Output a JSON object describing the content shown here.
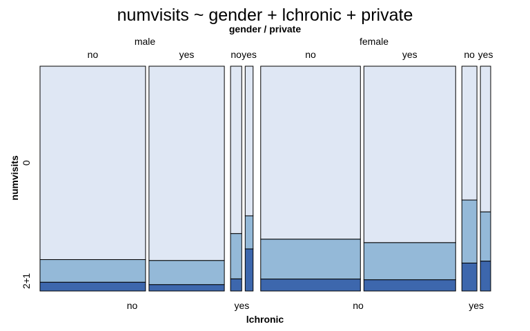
{
  "chart_data": {
    "type": "mosaic",
    "title": "numvisits ~ gender + lchronic + private",
    "top_variable_label": "gender / private",
    "xlabel": "lchronic",
    "ylabel": "numvisits",
    "gender_levels": [
      "male",
      "female"
    ],
    "private_levels": [
      "no",
      "yes"
    ],
    "lchronic_levels": [
      "no",
      "yes"
    ],
    "numvisits_levels": [
      "0",
      "1",
      "2+"
    ],
    "colors": {
      "0": "#dfe7f4",
      "1": "#94b9d8",
      "2+": "#3d67ad"
    },
    "cells": [
      {
        "gender": "male",
        "lchronic": "no",
        "private": "no",
        "width_share": 0.1973,
        "proportions": [
          0.8603,
          0.1005,
          0.0392
        ]
      },
      {
        "gender": "male",
        "lchronic": "no",
        "private": "yes",
        "width_share": 0.1409,
        "proportions": [
          0.8641,
          0.1073,
          0.0286
        ]
      },
      {
        "gender": "male",
        "lchronic": "yes",
        "private": "no",
        "width_share": 0.0209,
        "proportions": [
          0.7443,
          0.2016,
          0.0541
        ]
      },
      {
        "gender": "male",
        "lchronic": "yes",
        "private": "yes",
        "width_share": 0.0148,
        "proportions": [
          0.6654,
          0.1473,
          0.1873
        ]
      },
      {
        "gender": "female",
        "lchronic": "no",
        "private": "no",
        "width_share": 0.1865,
        "proportions": [
          0.7693,
          0.1774,
          0.0533
        ]
      },
      {
        "gender": "female",
        "lchronic": "no",
        "private": "yes",
        "width_share": 0.1716,
        "proportions": [
          0.7846,
          0.1652,
          0.0502
        ]
      },
      {
        "gender": "female",
        "lchronic": "yes",
        "private": "no",
        "width_share": 0.0282,
        "proportions": [
          0.5952,
          0.2804,
          0.1244
        ]
      },
      {
        "gender": "female",
        "lchronic": "yes",
        "private": "yes",
        "width_share": 0.0192,
        "proportions": [
          0.6478,
          0.2192,
          0.133
        ]
      }
    ]
  }
}
